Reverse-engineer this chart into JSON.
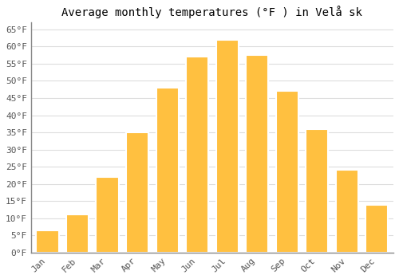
{
  "title": "Average monthly temperatures (°F ) in Velå sk",
  "months": [
    "Jan",
    "Feb",
    "Mar",
    "Apr",
    "May",
    "Jun",
    "Jul",
    "Aug",
    "Sep",
    "Oct",
    "Nov",
    "Dec"
  ],
  "values": [
    6.5,
    11,
    22,
    35,
    48,
    57,
    62,
    57.5,
    47,
    36,
    24,
    14
  ],
  "bar_color": "#FFC040",
  "bar_edge_color": "#FFFFFF",
  "ylim": [
    0,
    67
  ],
  "yticks": [
    0,
    5,
    10,
    15,
    20,
    25,
    30,
    35,
    40,
    45,
    50,
    55,
    60,
    65
  ],
  "ytick_labels": [
    "0°F",
    "5°F",
    "10°F",
    "15°F",
    "20°F",
    "25°F",
    "30°F",
    "35°F",
    "40°F",
    "45°F",
    "50°F",
    "55°F",
    "60°F",
    "65°F"
  ],
  "grid_color": "#dddddd",
  "background_color": "#ffffff",
  "title_fontsize": 10,
  "tick_fontsize": 8,
  "font_family": "monospace",
  "bar_width": 0.75
}
